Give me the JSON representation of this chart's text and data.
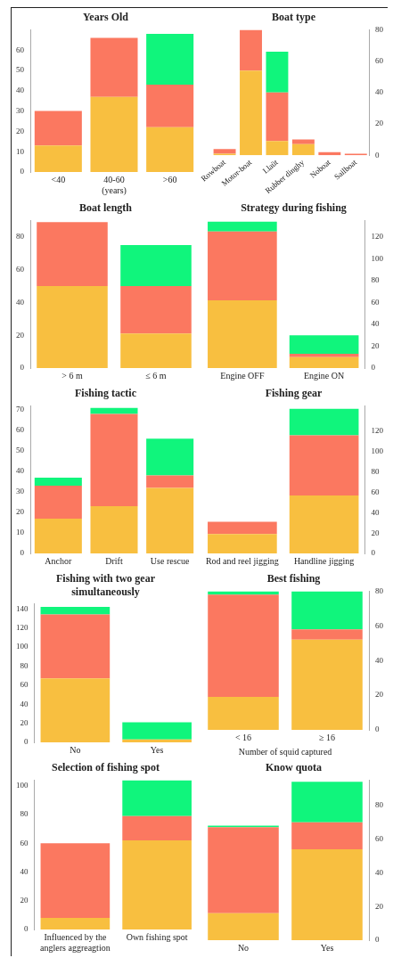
{
  "chart_data": [
    {
      "type": "bar",
      "title": "Years Old",
      "categories": [
        "<40",
        "40-60 (years)",
        ">60"
      ],
      "stacked": true,
      "ylim": [
        0,
        70
      ],
      "yticks": [
        0,
        10,
        20,
        30,
        40,
        50,
        60
      ],
      "series": [
        {
          "color": "#f8bf40",
          "values": [
            13,
            37,
            22
          ]
        },
        {
          "color": "#fb7860",
          "values": [
            17,
            29,
            21
          ]
        },
        {
          "color": "#10f57c",
          "values": [
            0,
            0,
            25
          ]
        }
      ]
    },
    {
      "type": "bar",
      "title": "Boat type",
      "categories": [
        "Rowboat",
        "Motor-boat",
        "Llaüt",
        "Rubber dinghy",
        "Noboat",
        "Sailboat"
      ],
      "stacked": true,
      "ylim": [
        0,
        80
      ],
      "yticks": [
        0,
        20,
        40,
        60,
        80
      ],
      "series": [
        {
          "color": "#f8bf40",
          "values": [
            1,
            54,
            9,
            7,
            0,
            0
          ]
        },
        {
          "color": "#fb7860",
          "values": [
            3,
            26,
            31,
            3,
            2,
            1
          ]
        },
        {
          "color": "#10f57c",
          "values": [
            0,
            0,
            26,
            0,
            0,
            0
          ]
        }
      ]
    },
    {
      "type": "bar",
      "title": "Boat length",
      "categories": [
        "> 6 m",
        "≤ 6 m"
      ],
      "stacked": true,
      "ylim": [
        0,
        90
      ],
      "yticks": [
        0,
        20,
        40,
        60,
        80
      ],
      "series": [
        {
          "color": "#f8bf40",
          "values": [
            50,
            21
          ]
        },
        {
          "color": "#fb7860",
          "values": [
            39,
            29
          ]
        },
        {
          "color": "#10f57c",
          "values": [
            0,
            25
          ]
        }
      ]
    },
    {
      "type": "bar",
      "title": "Strategy during fishing",
      "categories": [
        "Engine OFF",
        "Engine ON"
      ],
      "stacked": true,
      "ylim": [
        0,
        135
      ],
      "yticks": [
        0,
        20,
        40,
        60,
        80,
        100,
        120
      ],
      "series": [
        {
          "color": "#f8bf40",
          "values": [
            62,
            10
          ]
        },
        {
          "color": "#fb7860",
          "values": [
            63,
            3
          ]
        },
        {
          "color": "#10f57c",
          "values": [
            9,
            17
          ]
        }
      ]
    },
    {
      "type": "bar",
      "title": "Fishing tactic",
      "categories": [
        "Anchor",
        "Drift",
        "Use rescue"
      ],
      "stacked": true,
      "ylim": [
        0,
        72
      ],
      "yticks": [
        0,
        10,
        20,
        30,
        40,
        50,
        60,
        70
      ],
      "series": [
        {
          "color": "#f8bf40",
          "values": [
            17,
            23,
            32
          ]
        },
        {
          "color": "#fb7860",
          "values": [
            16,
            45,
            6
          ]
        },
        {
          "color": "#10f57c",
          "values": [
            4,
            3,
            18
          ]
        }
      ]
    },
    {
      "type": "bar",
      "title": "Fishing gear",
      "categories": [
        "Rod and reel jigging",
        "Handline jigging"
      ],
      "stacked": true,
      "ylim": [
        0,
        145
      ],
      "yticks": [
        0,
        20,
        40,
        60,
        80,
        100,
        120
      ],
      "series": [
        {
          "color": "#f8bf40",
          "values": [
            19,
            57
          ]
        },
        {
          "color": "#fb7860",
          "values": [
            12,
            59
          ]
        },
        {
          "color": "#10f57c",
          "values": [
            0,
            26
          ]
        }
      ]
    },
    {
      "type": "bar",
      "title": "Fishing with two gear simultaneously",
      "categories": [
        "No",
        "Yes"
      ],
      "stacked": true,
      "ylim": [
        0,
        145
      ],
      "yticks": [
        0,
        20,
        40,
        60,
        80,
        100,
        120,
        140
      ],
      "series": [
        {
          "color": "#f8bf40",
          "values": [
            67,
            3
          ]
        },
        {
          "color": "#fb7860",
          "values": [
            67,
            0
          ]
        },
        {
          "color": "#10f57c",
          "values": [
            8,
            18
          ]
        }
      ]
    },
    {
      "type": "bar",
      "title": "Best fishing",
      "xlabel": "Number of squid captured",
      "categories": [
        "< 16",
        "≥ 16"
      ],
      "stacked": true,
      "ylim": [
        0,
        80
      ],
      "yticks": [
        0,
        20,
        40,
        60,
        80
      ],
      "series": [
        {
          "color": "#f8bf40",
          "values": [
            19,
            52
          ]
        },
        {
          "color": "#fb7860",
          "values": [
            59,
            6
          ]
        },
        {
          "color": "#10f57c",
          "values": [
            2,
            22
          ]
        }
      ]
    },
    {
      "type": "bar",
      "title": "Selection of fishing spot",
      "categories": [
        "Influenced by the anglers aggreagtion",
        "Own fishing spot"
      ],
      "stacked": true,
      "ylim": [
        0,
        104
      ],
      "yticks": [
        0,
        20,
        40,
        60,
        80,
        100
      ],
      "series": [
        {
          "color": "#f8bf40",
          "values": [
            8,
            62
          ]
        },
        {
          "color": "#fb7860",
          "values": [
            52,
            17
          ]
        },
        {
          "color": "#10f57c",
          "values": [
            0,
            25
          ]
        }
      ]
    },
    {
      "type": "bar",
      "title": "Know quota",
      "categories": [
        "No",
        "Yes"
      ],
      "stacked": true,
      "ylim": [
        0,
        95
      ],
      "yticks": [
        0,
        20,
        40,
        60,
        80
      ],
      "series": [
        {
          "color": "#f8bf40",
          "values": [
            16,
            54
          ]
        },
        {
          "color": "#fb7860",
          "values": [
            51,
            16
          ]
        },
        {
          "color": "#10f57c",
          "values": [
            1,
            24
          ]
        }
      ]
    }
  ]
}
